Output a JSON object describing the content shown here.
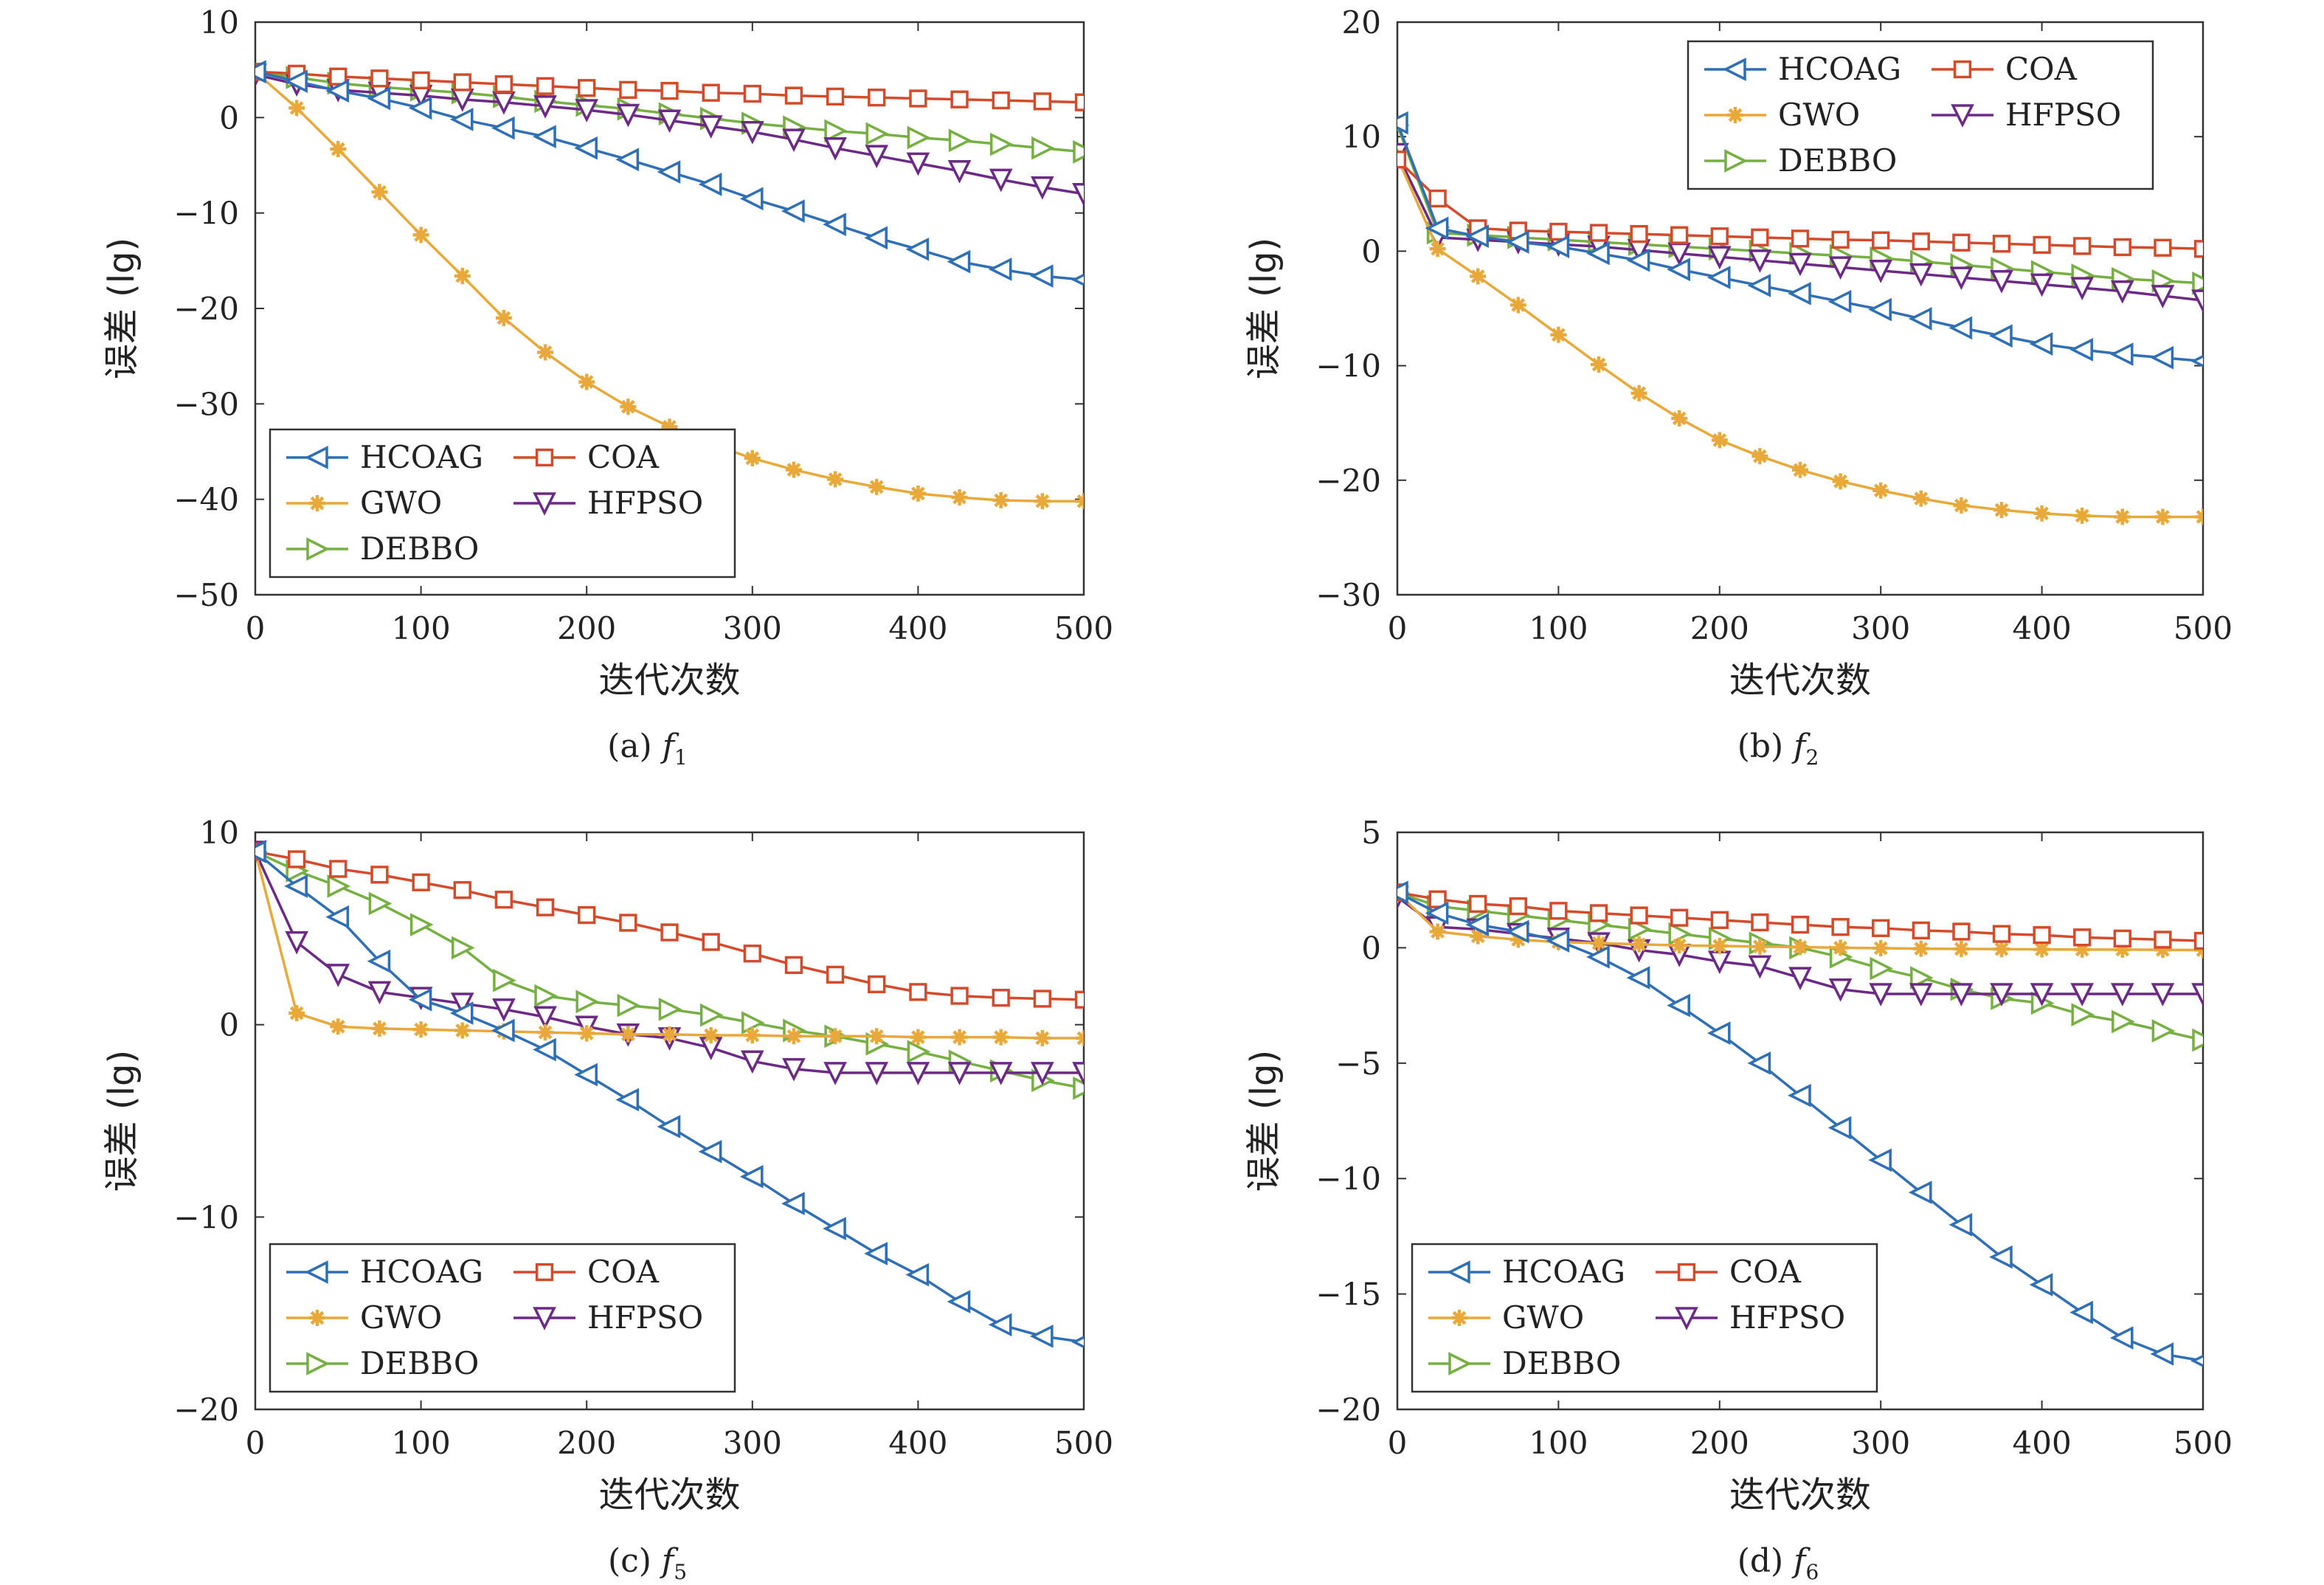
{
  "chart_data": [
    {
      "type": "line",
      "caption": "(a) f1",
      "caption_prefix": "(a)",
      "caption_fn": "f",
      "caption_sub": "1",
      "xlabel": "迭代次数",
      "ylabel": "误差 (lg)",
      "xlim": [
        0,
        500
      ],
      "ylim": [
        -50,
        10
      ],
      "xticks": [
        0,
        100,
        200,
        300,
        400,
        500
      ],
      "yticks": [
        -50,
        -40,
        -30,
        -20,
        -10,
        0,
        10
      ],
      "legend": "bottom-left",
      "x": [
        0,
        25,
        50,
        75,
        100,
        125,
        150,
        175,
        200,
        225,
        250,
        275,
        300,
        325,
        350,
        375,
        400,
        425,
        450,
        475,
        500
      ],
      "series": [
        {
          "name": "HCOAG",
          "color": "#2f6fb5",
          "marker": "tri-left",
          "values": [
            4.8,
            3.8,
            2.8,
            2.0,
            1.0,
            -0.2,
            -1.1,
            -2.0,
            -3.2,
            -4.4,
            -5.7,
            -7.0,
            -8.5,
            -9.8,
            -11.2,
            -12.6,
            -13.8,
            -15.1,
            -15.9,
            -16.6,
            -17.0
          ]
        },
        {
          "name": "COA",
          "color": "#d44b2b",
          "marker": "square",
          "values": [
            4.8,
            4.6,
            4.3,
            4.1,
            3.9,
            3.7,
            3.5,
            3.3,
            3.1,
            2.9,
            2.8,
            2.6,
            2.5,
            2.3,
            2.2,
            2.1,
            2.0,
            1.9,
            1.8,
            1.7,
            1.6
          ]
        },
        {
          "name": "GWO",
          "color": "#e9a93a",
          "marker": "star",
          "values": [
            4.8,
            1.0,
            -3.3,
            -7.8,
            -12.3,
            -16.6,
            -21.0,
            -24.6,
            -27.7,
            -30.3,
            -32.4,
            -34.2,
            -35.7,
            -36.9,
            -37.9,
            -38.7,
            -39.4,
            -39.8,
            -40.1,
            -40.2,
            -40.2
          ]
        },
        {
          "name": "HFPSO",
          "color": "#6c2a86",
          "marker": "tri-down",
          "values": [
            4.5,
            3.5,
            2.9,
            2.6,
            2.3,
            1.9,
            1.6,
            1.2,
            0.8,
            0.3,
            -0.3,
            -0.9,
            -1.5,
            -2.3,
            -3.2,
            -4.0,
            -4.8,
            -5.6,
            -6.5,
            -7.3,
            -8.0
          ]
        },
        {
          "name": "DEBBO",
          "color": "#76b043",
          "marker": "tri-right",
          "values": [
            4.8,
            4.2,
            3.6,
            3.2,
            2.9,
            2.6,
            2.2,
            1.7,
            1.3,
            0.9,
            0.4,
            -0.1,
            -0.6,
            -1.0,
            -1.4,
            -1.7,
            -2.1,
            -2.4,
            -2.8,
            -3.2,
            -3.6
          ]
        }
      ]
    },
    {
      "type": "line",
      "caption": "(b) f2",
      "caption_prefix": "(b)",
      "caption_fn": "f",
      "caption_sub": "2",
      "xlabel": "迭代次数",
      "ylabel": "误差 (lg)",
      "xlim": [
        0,
        500
      ],
      "ylim": [
        -30,
        20
      ],
      "xticks": [
        0,
        100,
        200,
        300,
        400,
        500
      ],
      "yticks": [
        -30,
        -20,
        -10,
        0,
        10,
        20
      ],
      "legend": "top-right",
      "x": [
        0,
        25,
        50,
        75,
        100,
        125,
        150,
        175,
        200,
        225,
        250,
        275,
        300,
        325,
        350,
        375,
        400,
        425,
        450,
        475,
        500
      ],
      "series": [
        {
          "name": "HCOAG",
          "color": "#2f6fb5",
          "marker": "tri-left",
          "values": [
            11.2,
            2.0,
            1.3,
            0.8,
            0.4,
            -0.2,
            -0.8,
            -1.6,
            -2.3,
            -3.0,
            -3.7,
            -4.4,
            -5.1,
            -5.9,
            -6.7,
            -7.4,
            -8.1,
            -8.6,
            -9.0,
            -9.3,
            -9.6
          ]
        },
        {
          "name": "COA",
          "color": "#d44b2b",
          "marker": "square",
          "values": [
            8.0,
            4.6,
            2.0,
            1.8,
            1.7,
            1.6,
            1.5,
            1.4,
            1.3,
            1.2,
            1.1,
            1.0,
            0.95,
            0.85,
            0.75,
            0.65,
            0.55,
            0.45,
            0.35,
            0.3,
            0.2
          ]
        },
        {
          "name": "GWO",
          "color": "#e9a93a",
          "marker": "star",
          "values": [
            8.2,
            0.2,
            -2.2,
            -4.7,
            -7.3,
            -9.9,
            -12.4,
            -14.6,
            -16.5,
            -17.9,
            -19.1,
            -20.1,
            -20.9,
            -21.6,
            -22.2,
            -22.6,
            -22.9,
            -23.1,
            -23.2,
            -23.2,
            -23.2
          ]
        },
        {
          "name": "HFPSO",
          "color": "#6c2a86",
          "marker": "tri-down",
          "values": [
            8.5,
            1.2,
            1.0,
            0.8,
            0.6,
            0.4,
            0.1,
            -0.2,
            -0.5,
            -0.8,
            -1.1,
            -1.4,
            -1.7,
            -2.0,
            -2.3,
            -2.6,
            -2.9,
            -3.2,
            -3.5,
            -3.9,
            -4.3
          ]
        },
        {
          "name": "DEBBO",
          "color": "#76b043",
          "marker": "tri-right",
          "values": [
            11.0,
            1.6,
            1.4,
            1.2,
            1.0,
            0.8,
            0.6,
            0.4,
            0.2,
            0.0,
            -0.2,
            -0.4,
            -0.6,
            -0.9,
            -1.2,
            -1.5,
            -1.8,
            -2.1,
            -2.4,
            -2.6,
            -2.8
          ]
        }
      ]
    },
    {
      "type": "line",
      "caption": "(c) f5",
      "caption_prefix": "(c)",
      "caption_fn": "f",
      "caption_sub": "5",
      "xlabel": "迭代次数",
      "ylabel": "误差 (lg)",
      "xlim": [
        0,
        500
      ],
      "ylim": [
        -20,
        10
      ],
      "xticks": [
        0,
        100,
        200,
        300,
        400,
        500
      ],
      "yticks": [
        -20,
        -10,
        0,
        10
      ],
      "legend": "bottom-left",
      "x": [
        0,
        25,
        50,
        75,
        100,
        125,
        150,
        175,
        200,
        225,
        250,
        275,
        300,
        325,
        350,
        375,
        400,
        425,
        450,
        475,
        500
      ],
      "series": [
        {
          "name": "HCOAG",
          "color": "#2f6fb5",
          "marker": "tri-left",
          "values": [
            9.0,
            7.2,
            5.6,
            3.3,
            1.3,
            0.6,
            -0.3,
            -1.3,
            -2.6,
            -3.9,
            -5.3,
            -6.6,
            -7.9,
            -9.3,
            -10.6,
            -11.9,
            -13.0,
            -14.4,
            -15.6,
            -16.2,
            -16.5
          ]
        },
        {
          "name": "COA",
          "color": "#d44b2b",
          "marker": "square",
          "values": [
            9.0,
            8.6,
            8.1,
            7.8,
            7.4,
            7.0,
            6.5,
            6.1,
            5.7,
            5.3,
            4.8,
            4.3,
            3.7,
            3.1,
            2.6,
            2.1,
            1.7,
            1.5,
            1.4,
            1.35,
            1.3
          ]
        },
        {
          "name": "GWO",
          "color": "#e9a93a",
          "marker": "star",
          "values": [
            9.0,
            0.6,
            -0.1,
            -0.2,
            -0.25,
            -0.3,
            -0.35,
            -0.4,
            -0.45,
            -0.5,
            -0.5,
            -0.55,
            -0.55,
            -0.6,
            -0.6,
            -0.6,
            -0.65,
            -0.65,
            -0.65,
            -0.7,
            -0.7
          ]
        },
        {
          "name": "HFPSO",
          "color": "#6c2a86",
          "marker": "tri-down",
          "values": [
            9.0,
            4.3,
            2.6,
            1.7,
            1.4,
            1.1,
            0.8,
            0.4,
            -0.1,
            -0.5,
            -0.7,
            -1.2,
            -1.9,
            -2.3,
            -2.5,
            -2.5,
            -2.5,
            -2.5,
            -2.5,
            -2.5,
            -2.5
          ]
        },
        {
          "name": "DEBBO",
          "color": "#76b043",
          "marker": "tri-right",
          "values": [
            9.0,
            8.0,
            7.2,
            6.3,
            5.2,
            4.0,
            2.3,
            1.5,
            1.2,
            1.0,
            0.8,
            0.5,
            0.1,
            -0.3,
            -0.6,
            -1.0,
            -1.4,
            -1.9,
            -2.4,
            -2.9,
            -3.3
          ]
        }
      ]
    },
    {
      "type": "line",
      "caption": "(d) f6",
      "caption_prefix": "(d)",
      "caption_fn": "f",
      "caption_sub": "6",
      "xlabel": "迭代次数",
      "ylabel": "误差 (lg)",
      "xlim": [
        0,
        500
      ],
      "ylim": [
        -20,
        5
      ],
      "xticks": [
        0,
        100,
        200,
        300,
        400,
        500
      ],
      "yticks": [
        -20,
        -15,
        -10,
        -5,
        0,
        5
      ],
      "legend": "bottom-left",
      "x": [
        0,
        25,
        50,
        75,
        100,
        125,
        150,
        175,
        200,
        225,
        250,
        275,
        300,
        325,
        350,
        375,
        400,
        425,
        450,
        475,
        500
      ],
      "series": [
        {
          "name": "HCOAG",
          "color": "#2f6fb5",
          "marker": "tri-left",
          "values": [
            2.4,
            1.5,
            1.0,
            0.7,
            0.3,
            -0.4,
            -1.3,
            -2.5,
            -3.7,
            -5.0,
            -6.4,
            -7.8,
            -9.2,
            -10.6,
            -12.0,
            -13.4,
            -14.6,
            -15.8,
            -16.9,
            -17.6,
            -17.9
          ]
        },
        {
          "name": "COA",
          "color": "#d44b2b",
          "marker": "square",
          "values": [
            2.4,
            2.1,
            1.9,
            1.8,
            1.6,
            1.5,
            1.4,
            1.3,
            1.2,
            1.1,
            1.0,
            0.9,
            0.85,
            0.75,
            0.7,
            0.6,
            0.55,
            0.45,
            0.4,
            0.35,
            0.3
          ]
        },
        {
          "name": "GWO",
          "color": "#e9a93a",
          "marker": "star",
          "values": [
            2.4,
            0.7,
            0.5,
            0.35,
            0.25,
            0.2,
            0.15,
            0.1,
            0.08,
            0.05,
            0.03,
            0.0,
            -0.02,
            -0.04,
            -0.05,
            -0.06,
            -0.07,
            -0.08,
            -0.08,
            -0.09,
            -0.1
          ]
        },
        {
          "name": "HFPSO",
          "color": "#6c2a86",
          "marker": "tri-down",
          "values": [
            2.2,
            0.9,
            0.8,
            0.6,
            0.4,
            0.2,
            -0.1,
            -0.3,
            -0.6,
            -0.8,
            -1.3,
            -1.8,
            -2.0,
            -2.0,
            -2.0,
            -2.0,
            -2.0,
            -2.0,
            -2.0,
            -2.0,
            -2.0
          ]
        },
        {
          "name": "DEBBO",
          "color": "#76b043",
          "marker": "tri-right",
          "values": [
            2.4,
            1.8,
            1.6,
            1.4,
            1.2,
            1.0,
            0.8,
            0.6,
            0.4,
            0.2,
            0.0,
            -0.4,
            -0.9,
            -1.3,
            -1.8,
            -2.2,
            -2.4,
            -2.9,
            -3.2,
            -3.6,
            -4.0
          ]
        }
      ]
    }
  ]
}
